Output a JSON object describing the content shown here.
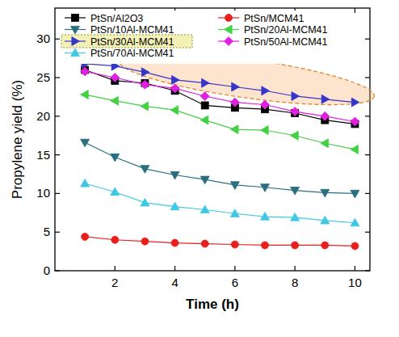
{
  "chart_data": {
    "type": "line",
    "x_label": "Time (h)",
    "y_label": "Propylene yield (%)",
    "x": [
      1,
      2,
      3,
      4,
      5,
      6,
      7,
      8,
      9,
      10
    ],
    "xlim": [
      0,
      10.5
    ],
    "xticks": [
      2,
      4,
      6,
      8,
      10
    ],
    "ylim": [
      0,
      34
    ],
    "yticks": [
      0,
      5,
      10,
      15,
      20,
      25,
      30
    ],
    "legend": "top",
    "series": [
      {
        "name": "PtSn/Al2O3",
        "color": "#000000",
        "marker": "square",
        "values": [
          26.0,
          24.6,
          24.3,
          23.3,
          21.4,
          21.1,
          20.9,
          20.4,
          19.5,
          19.0
        ]
      },
      {
        "name": "PtSn/MCM41",
        "color": "#e8201c",
        "marker": "circle",
        "values": [
          4.4,
          4.0,
          3.8,
          3.6,
          3.5,
          3.4,
          3.3,
          3.3,
          3.3,
          3.2
        ]
      },
      {
        "name": "PtSn/10Al-MCM41",
        "color": "#2a6f80",
        "marker": "triangle-down",
        "values": [
          16.6,
          14.7,
          13.2,
          12.4,
          11.8,
          11.1,
          10.8,
          10.4,
          10.1,
          10.0
        ]
      },
      {
        "name": "PtSn/20Al-MCM41",
        "color": "#44d044",
        "marker": "triangle-left",
        "values": [
          22.8,
          22.0,
          21.3,
          20.8,
          19.5,
          18.3,
          18.2,
          17.5,
          16.5,
          15.7
        ]
      },
      {
        "name": "PtSn/30Al-MCM41",
        "color": "#3535c8",
        "marker": "triangle-right",
        "values": [
          26.8,
          26.5,
          25.7,
          24.7,
          24.3,
          23.8,
          23.3,
          22.6,
          22.2,
          21.8
        ]
      },
      {
        "name": "PtSn/50Al-MCM41",
        "color": "#e020e0",
        "marker": "diamond",
        "values": [
          25.8,
          25.0,
          24.1,
          23.6,
          22.6,
          21.8,
          21.5,
          20.6,
          20.0,
          19.3
        ]
      },
      {
        "name": "PtSn/70Al-MCM41",
        "color": "#3ec8e6",
        "marker": "triangle-up",
        "values": [
          11.3,
          10.2,
          8.8,
          8.3,
          7.9,
          7.4,
          7.0,
          6.9,
          6.5,
          6.2
        ]
      }
    ]
  }
}
